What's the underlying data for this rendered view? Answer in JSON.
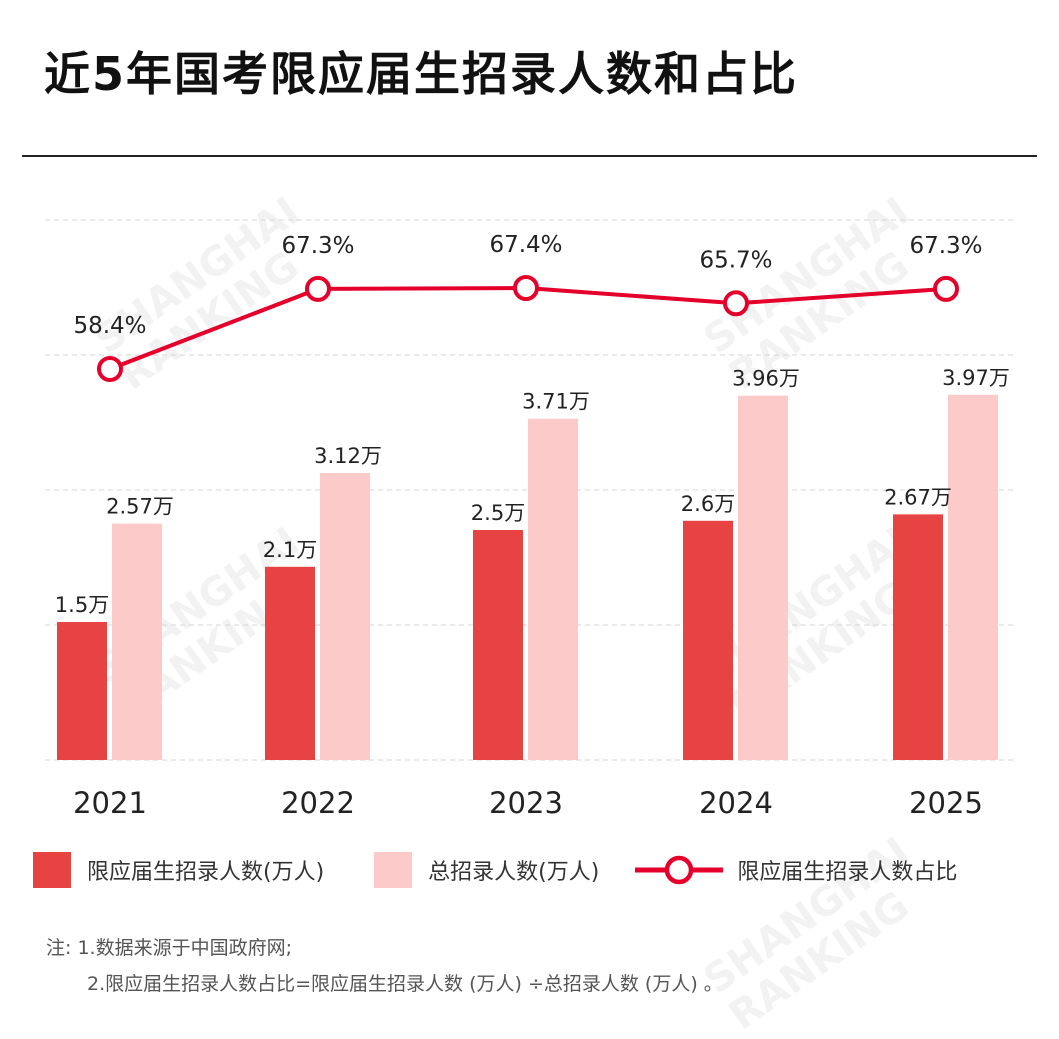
{
  "watermark": "SHANGHAI RANKING",
  "chart_data": {
    "type": "bar+line",
    "title": "近5年国考限应届生招录人数和占比",
    "categories": [
      "2021",
      "2022",
      "2023",
      "2024",
      "2025"
    ],
    "series": [
      {
        "name": "限应届生招录人数(万人)",
        "type": "bar",
        "color": "#e84343",
        "values": [
          1.5,
          2.1,
          2.5,
          2.6,
          2.67
        ],
        "labels": [
          "1.5万",
          "2.1万",
          "2.5万",
          "2.6万",
          "2.67万"
        ]
      },
      {
        "name": "总招录人数(万人)",
        "type": "bar",
        "color": "#fdcaca",
        "values": [
          2.57,
          3.12,
          3.71,
          3.96,
          3.97
        ],
        "labels": [
          "2.57万",
          "3.12万",
          "3.71万",
          "3.96万",
          "3.97万"
        ]
      },
      {
        "name": "限应届生招录人数占比",
        "type": "line",
        "color": "#e4002b",
        "values": [
          58.4,
          67.3,
          67.4,
          65.7,
          67.3
        ],
        "labels": [
          "58.4%",
          "67.3%",
          "67.4%",
          "65.7%",
          "67.3%"
        ]
      }
    ],
    "grid": true,
    "legend": "bottom"
  },
  "notes": {
    "line1": "注: 1.数据来源于中国政府网;",
    "line2": "2.限应届生招录人数占比=限应届生招录人数 (万人) ÷总招录人数 (万人) 。"
  }
}
